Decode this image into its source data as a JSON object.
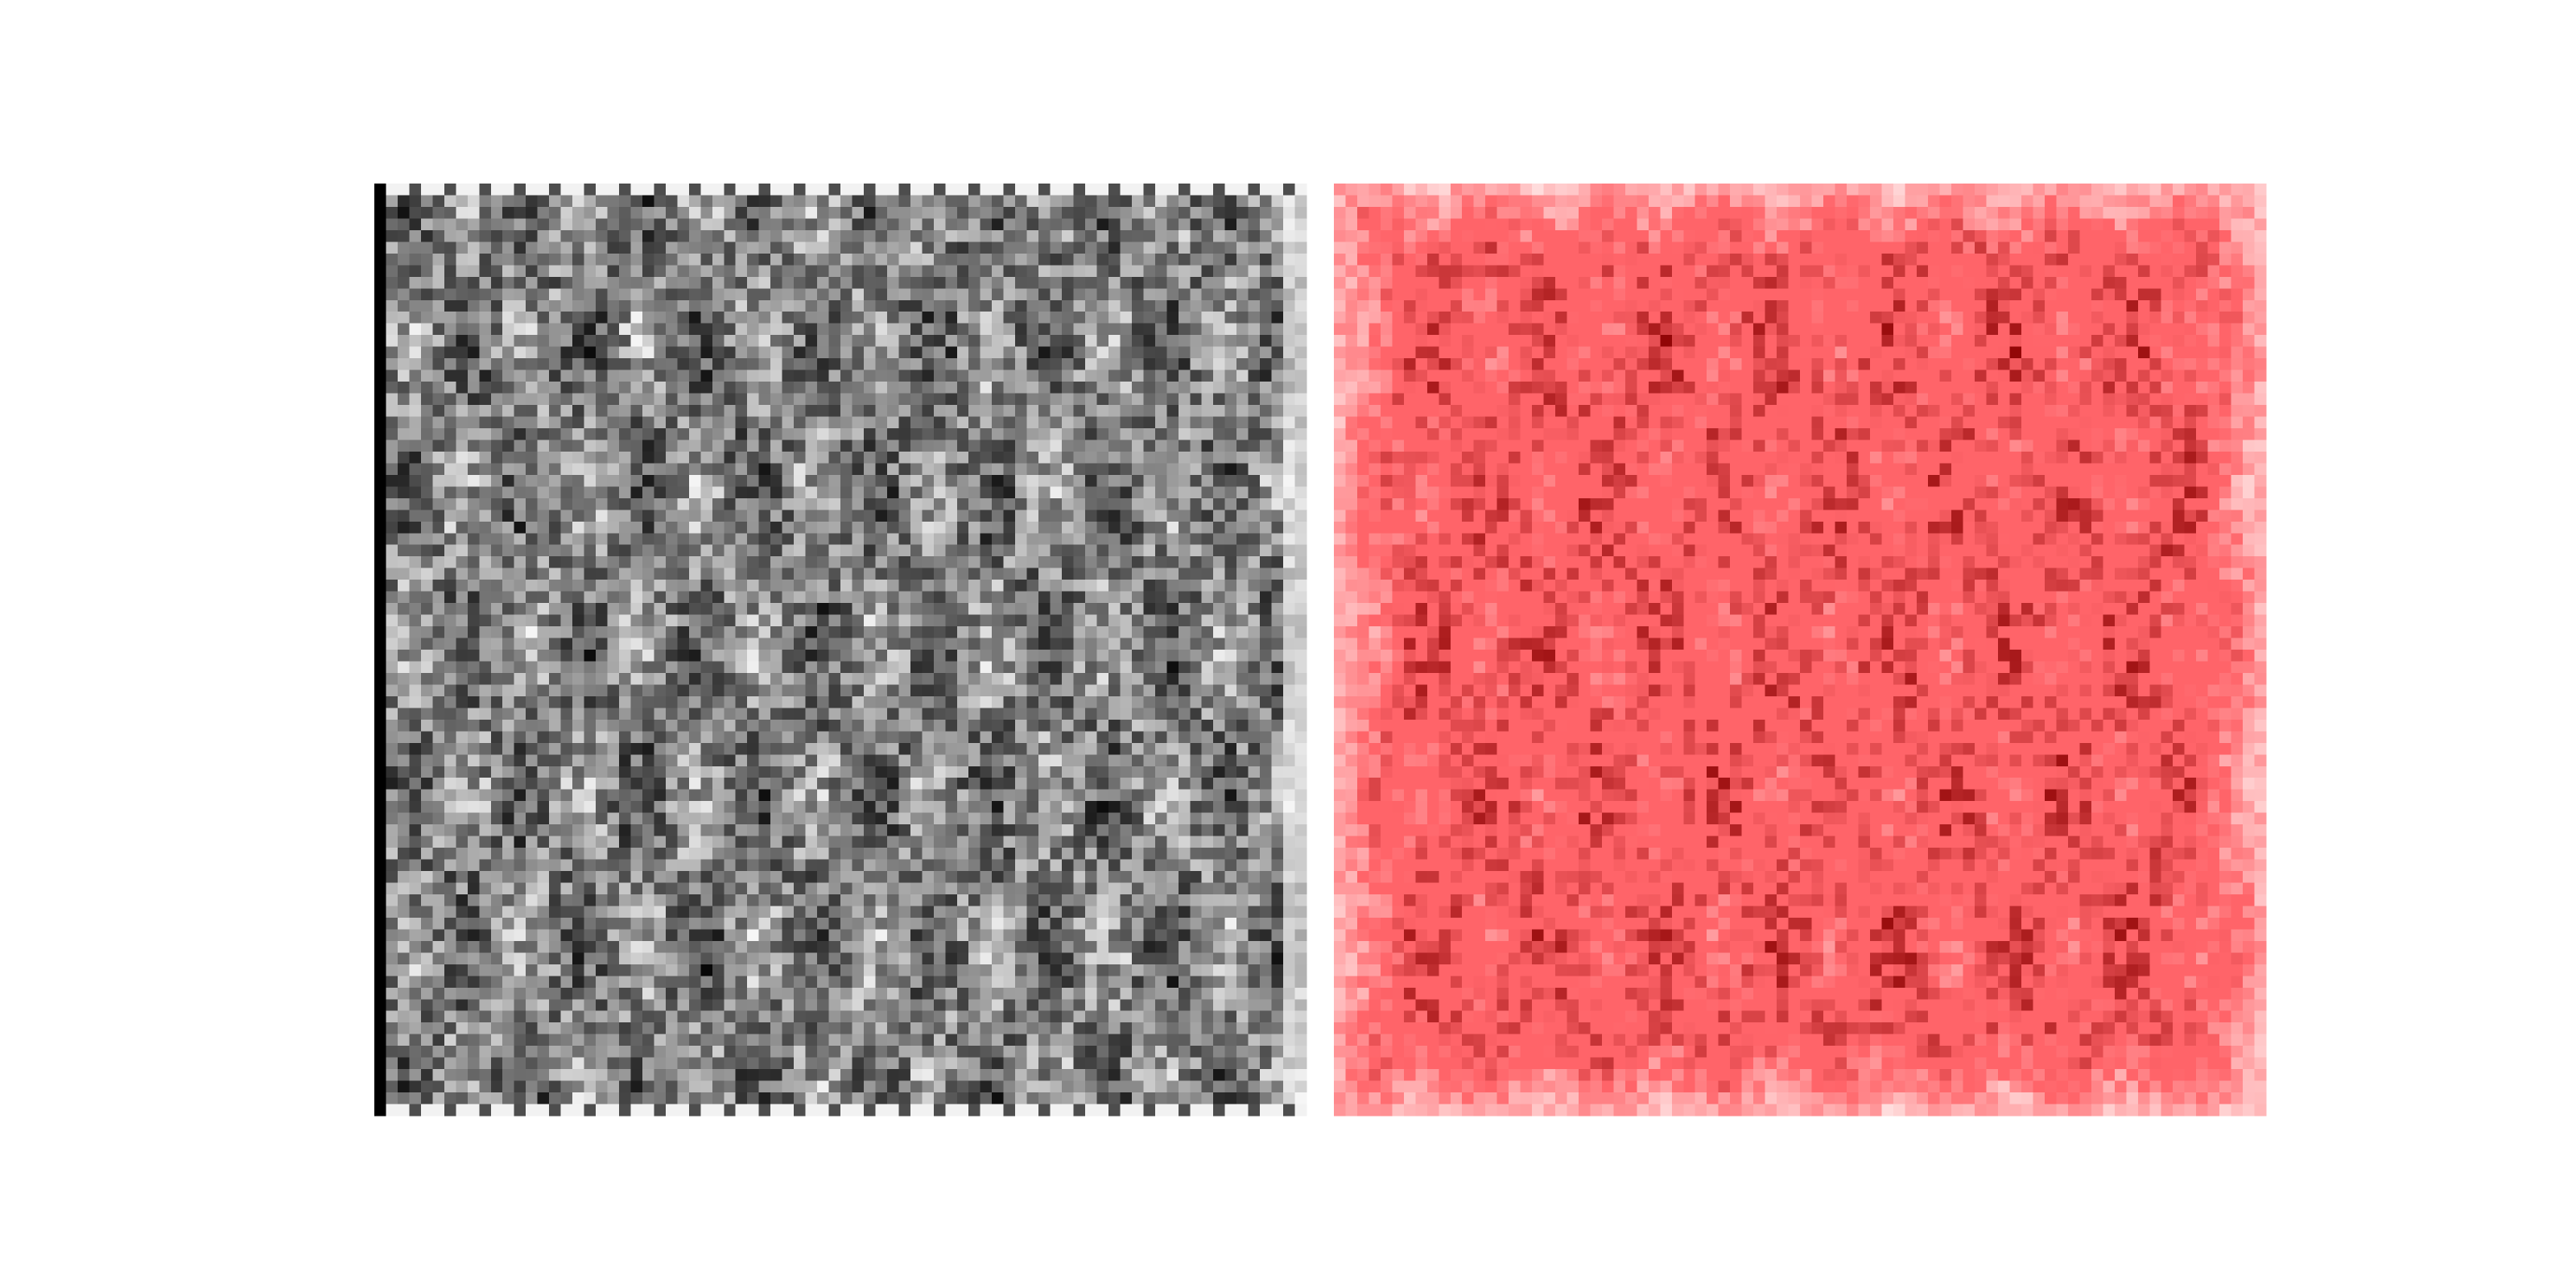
{
  "panels": [
    {
      "color": "#000000"
    },
    {
      "color": "#8b0000"
    }
  ]
}
